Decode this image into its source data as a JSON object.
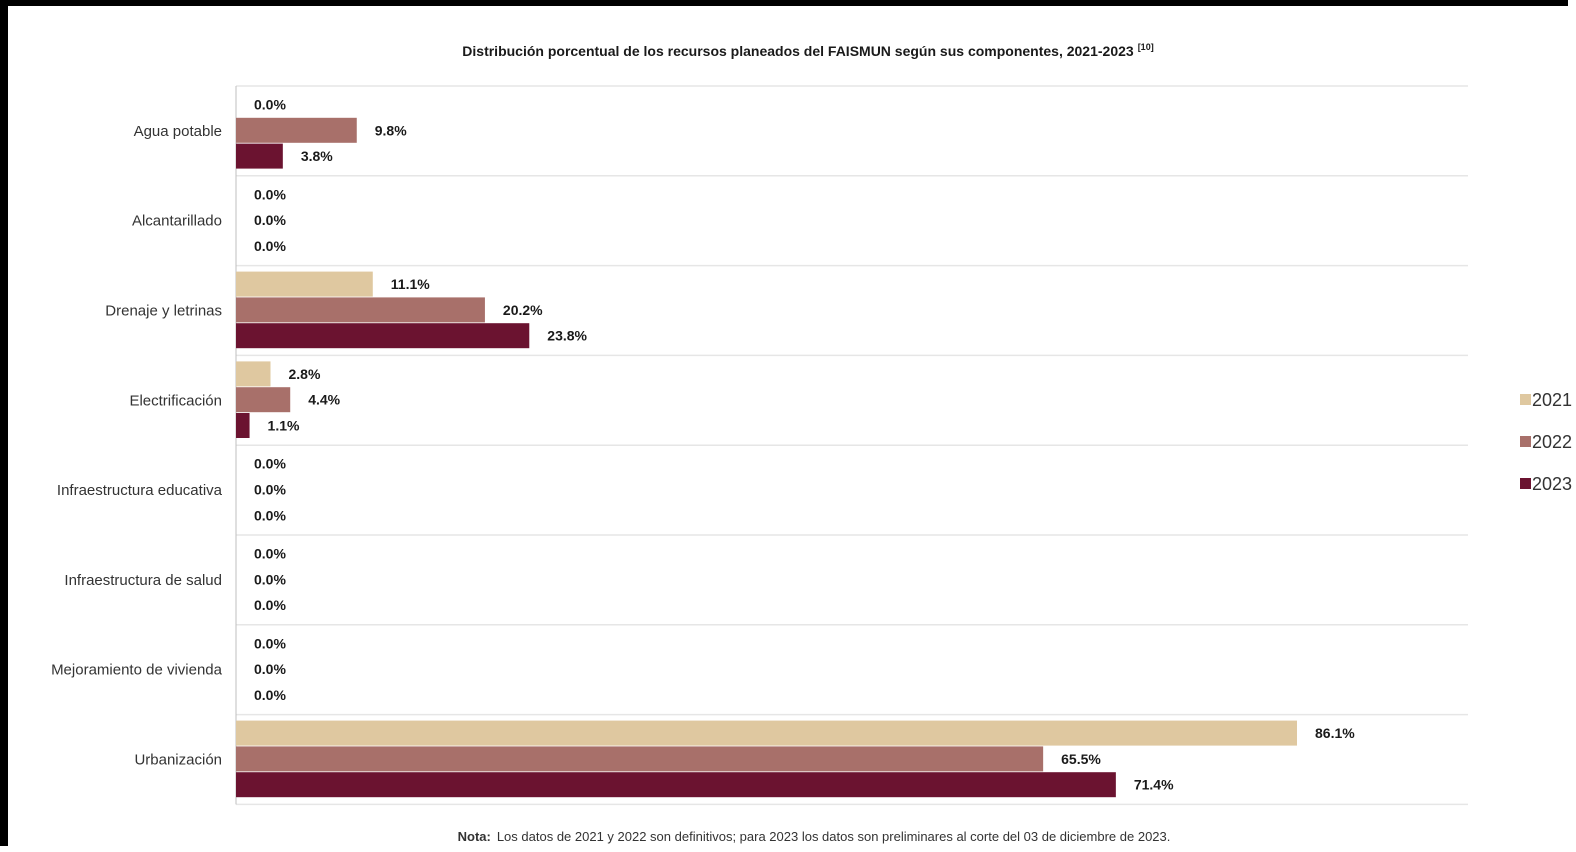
{
  "colors": {
    "2021": "#dfc8a0",
    "2022": "#a8706a",
    "2023": "#6b1330",
    "grid": "#e6e6e6",
    "axis": "#bfbfbf"
  },
  "chart_data": {
    "type": "bar",
    "orientation": "horizontal",
    "title": "Distribución porcentual de los recursos planeados del FAISMUN según sus componentes, 2021-2023",
    "title_superscript": "[10]",
    "categories": [
      "Agua potable",
      "Alcantarillado",
      "Drenaje y letrinas",
      "Electrificación",
      "Infraestructura educativa",
      "Infraestructura de salud",
      "Mejoramiento de vivienda",
      "Urbanización"
    ],
    "series": [
      {
        "name": "2021",
        "values": [
          0.0,
          0.0,
          11.1,
          2.8,
          0.0,
          0.0,
          0.0,
          86.1
        ],
        "labels": [
          "0.0%",
          "0.0%",
          "11.1%",
          "2.8%",
          "0.0%",
          "0.0%",
          "0.0%",
          "86.1%"
        ]
      },
      {
        "name": "2022",
        "values": [
          9.8,
          0.0,
          20.2,
          4.4,
          0.0,
          0.0,
          0.0,
          65.5
        ],
        "labels": [
          "9.8%",
          "0.0%",
          "20.2%",
          "4.4%",
          "0.0%",
          "0.0%",
          "0.0%",
          "65.5%"
        ]
      },
      {
        "name": "2023",
        "values": [
          3.8,
          0.0,
          23.8,
          1.1,
          0.0,
          0.0,
          0.0,
          71.4
        ],
        "labels": [
          "3.8%",
          "0.0%",
          "23.8%",
          "1.1%",
          "0.0%",
          "0.0%",
          "0.0%",
          "71.4%"
        ]
      }
    ],
    "xlim": [
      0,
      100
    ],
    "grid": true,
    "legend_position": "right"
  },
  "note": {
    "label": "Nota:",
    "text": "Los datos de 2021 y 2022 son definitivos; para 2023 los datos son preliminares al corte del 03 de diciembre de 2023."
  }
}
